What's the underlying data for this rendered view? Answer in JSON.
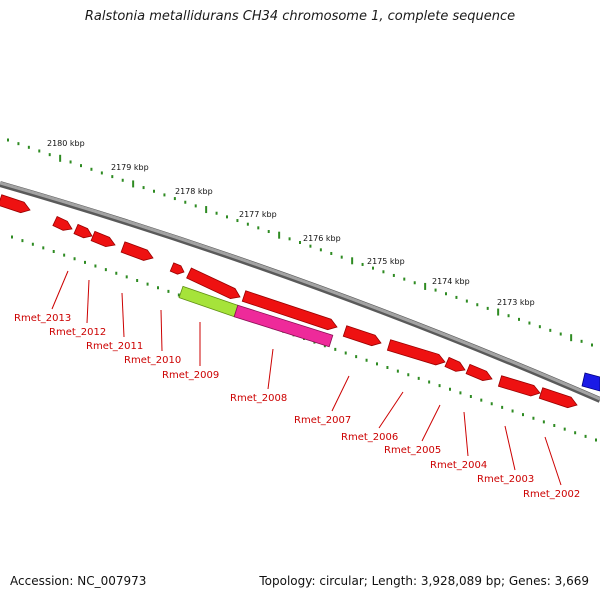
{
  "title": "Ralstonia metallidurans CH34 chromosome 1, complete sequence",
  "footer": {
    "accession": "Accession: NC_007973",
    "summary": "Topology: circular; Length: 3,928,089 bp; Genes: 3,669"
  },
  "colors": {
    "backbone": "#8a8a8a",
    "gene_red": "#ee1111",
    "gene_pink": "#ee2a9a",
    "gene_green": "#a6e33a",
    "gene_blue": "#1a1ae6",
    "tick_green": "#2e8b22",
    "label_red": "#cc0000"
  },
  "scale_ticks": [
    {
      "label": "2180 kbp"
    },
    {
      "label": "2179 kbp"
    },
    {
      "label": "2178 kbp"
    },
    {
      "label": "2177 kbp"
    },
    {
      "label": "2176 kbp"
    },
    {
      "label": "2175 kbp"
    },
    {
      "label": "2174 kbp"
    },
    {
      "label": "2173 kbp"
    }
  ],
  "gene_labels": [
    {
      "label": "Rmet_2013"
    },
    {
      "label": "Rmet_2012"
    },
    {
      "label": "Rmet_2011"
    },
    {
      "label": "Rmet_2010"
    },
    {
      "label": "Rmet_2009"
    },
    {
      "label": "Rmet_2008"
    },
    {
      "label": "Rmet_2007"
    },
    {
      "label": "Rmet_2006"
    },
    {
      "label": "Rmet_2005"
    },
    {
      "label": "Rmet_2004"
    },
    {
      "label": "Rmet_2003"
    },
    {
      "label": "Rmet_2002"
    }
  ]
}
